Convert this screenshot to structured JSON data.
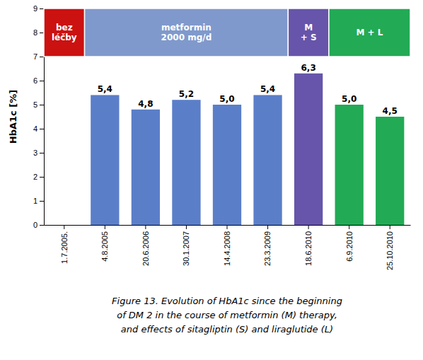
{
  "chart_data": {
    "type": "bar",
    "y_label": "HbA1c [%]",
    "categories": [
      "1.7.2005.",
      "4.8.2005",
      "20.6.2006",
      "30.1.2007",
      "14.4.2008",
      "23.3.2009",
      "18.6.2010",
      "6.9.2010",
      "25.10.2010"
    ],
    "values": [
      0,
      5.4,
      4.8,
      5.2,
      5.0,
      5.4,
      6.3,
      5.0,
      4.5
    ],
    "value_labels": [
      null,
      "5,4",
      "4,8",
      "5,2",
      "5,0",
      "5,4",
      "6,3",
      "5,0",
      "4,5"
    ],
    "colors": [
      "#cc1111",
      "#5b7ec9",
      "#5b7ec9",
      "#5b7ec9",
      "#5b7ec9",
      "#5b7ec9",
      "#6655aa",
      "#22aa55",
      "#22aa55"
    ],
    "ylim": [
      0,
      9
    ],
    "yticks": [
      0,
      1,
      2,
      3,
      4,
      5,
      6,
      7,
      8,
      9
    ],
    "grid": false,
    "annotations": [
      {
        "text": "bez\nléčby",
        "first": "1.7.2005.",
        "last": "1.7.2005.",
        "y": [
          7.0,
          9.0
        ],
        "color": "#cc1111",
        "text_color": "#ffffff"
      },
      {
        "text": "metformin\n2000 mg/d",
        "first": "4.8.2005",
        "last": "23.3.2009",
        "y": [
          7.0,
          9.0
        ],
        "color": "#8099cc",
        "text_color": "#ffffff"
      },
      {
        "text": "M\n+ S",
        "first": "18.6.2010",
        "last": "18.6.2010",
        "y": [
          7.0,
          9.0
        ],
        "color": "#6655aa",
        "text_color": "#ffffff"
      },
      {
        "text": "M + L",
        "first": "6.9.2010",
        "last": "25.10.2010",
        "y": [
          7.0,
          9.0
        ],
        "color": "#22aa55",
        "text_color": "#ffffff"
      }
    ],
    "caption": [
      "Figure 13. Evolution of HbA1c since the beginning",
      "of DM 2 in the course of metformin (M) therapy,",
      "and effects of sitagliptin (S) and liraglutide (L)"
    ]
  }
}
